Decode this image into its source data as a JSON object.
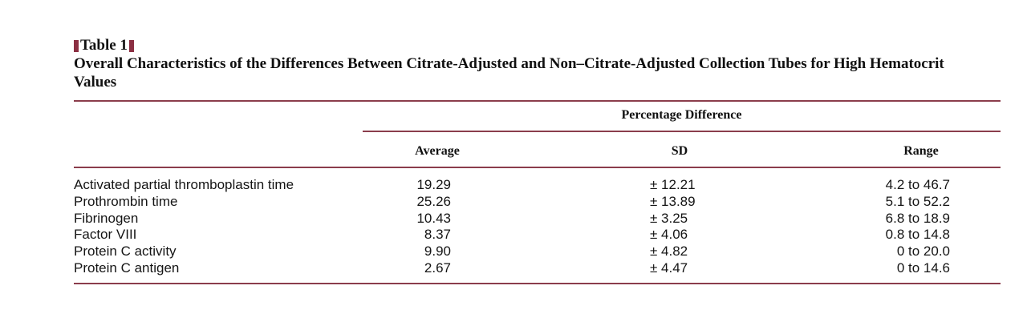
{
  "table": {
    "label": "Table 1",
    "title": "Overall Characteristics of the Differences Between Citrate-Adjusted and Non–Citrate-Adjusted Collection Tubes for High Hematocrit Values",
    "spanner": "Percentage Difference",
    "columns": {
      "average": "Average",
      "sd": "SD",
      "range": "Range"
    },
    "accent_color": "#8b2f42",
    "rows": [
      {
        "label": "Activated partial thromboplastin time",
        "average": "19.29",
        "sd": "± 12.21",
        "range": "4.2 to 46.7"
      },
      {
        "label": "Prothrombin time",
        "average": "25.26",
        "sd": "± 13.89",
        "range": "5.1 to 52.2"
      },
      {
        "label": "Fibrinogen",
        "average": "10.43",
        "sd": "± 3.25",
        "range": "6.8 to 18.9"
      },
      {
        "label": "Factor VIII",
        "average": "8.37",
        "sd": "± 4.06",
        "range": "0.8 to 14.8"
      },
      {
        "label": "Protein C activity",
        "average": "9.90",
        "sd": "± 4.82",
        "range": "0 to 20.0"
      },
      {
        "label": "Protein C antigen",
        "average": "2.67",
        "sd": "± 4.47",
        "range": "0 to 14.6"
      }
    ]
  }
}
